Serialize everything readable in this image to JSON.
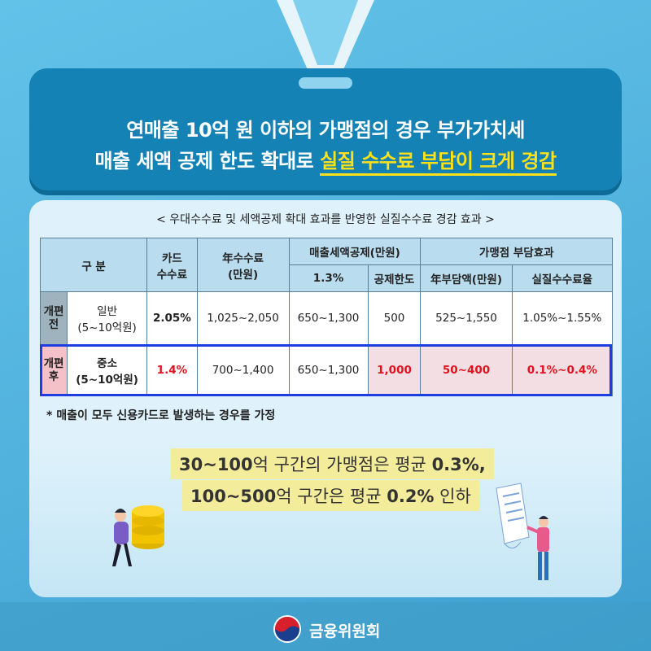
{
  "header": {
    "line1": "연매출 10억 원 이하의 가맹점의 경우 부가가치세",
    "line2_prefix": "매출 세액 공제 한도 확대로 ",
    "line2_highlight": "실질 수수료 부담이 크게 경감"
  },
  "subtitle": "< 우대수수료 및 세액공제 확대 효과를 반영한 실질수수료 경감 효과 >",
  "table": {
    "headers": {
      "category": "구  분",
      "card_fee_1": "카드",
      "card_fee_2": "수수료",
      "annual_fee_1": "年수수료",
      "annual_fee_2": "(만원)",
      "tax_credit": "매출세액공제(만원)",
      "tax_rate": "1.3%",
      "tax_limit": "공제한도",
      "burden": "가맹점  부담효과",
      "annual_burden": "年부담액(만원)",
      "real_rate": "실질수수료율"
    },
    "side_before": "개편전",
    "side_after": "개편후",
    "rows": [
      {
        "type_1": "일반",
        "type_2": "(5~10억원)",
        "card_fee": "2.05%",
        "annual_fee": "1,025~2,050",
        "credit": "650~1,300",
        "limit": "500",
        "burden": "525~1,550",
        "real_rate": "1.05%~1.55%"
      },
      {
        "type_1": "중소",
        "type_2": "(5~10억원)",
        "card_fee": "1.4%",
        "annual_fee": "700~1,400",
        "credit": "650~1,300",
        "limit": "1,000",
        "burden": "50~400",
        "real_rate": "0.1%~0.4%"
      }
    ]
  },
  "note": "* 매출이 모두 신용카드로 발생하는 경우를 가정",
  "callouts": {
    "line1_a": "30~100",
    "line1_b": "억 구간의 가맹점은 평균 ",
    "line1_c": "0.3%,",
    "line2_a": "100~500",
    "line2_b": "억 구간은 평균 ",
    "line2_c": "0.2%",
    "line2_d": " 인하"
  },
  "footer": {
    "org": "금융위원회"
  },
  "colors": {
    "accent": "#1482b4",
    "highlight": "#ffe11a",
    "red": "#e0121e",
    "outline": "#1d3de0"
  }
}
